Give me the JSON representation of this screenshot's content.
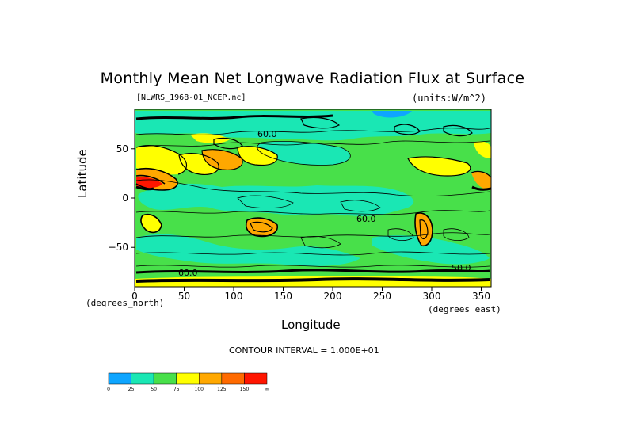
{
  "chart_data": {
    "type": "heatmap",
    "title": "Monthly Mean Net Longwave Radiation Flux at Surface",
    "file_label": "[NLWRS_1968-01_NCEP.nc]",
    "units_label": "(units:W/m^2)",
    "xlabel": "Longitude",
    "ylabel": "Latitude",
    "x_unit_label": "(degrees_east)",
    "y_unit_label": "(degrees_north)",
    "x_ticks": [
      0,
      50,
      100,
      150,
      200,
      250,
      300,
      350
    ],
    "y_ticks": [
      50,
      0,
      -50
    ],
    "xlim": [
      0,
      360
    ],
    "ylim": [
      -90,
      90
    ],
    "contour_interval": "CONTOUR INTERVAL = 1.000E+01",
    "contour_labels": [
      "60.0",
      "60.0",
      "60.0",
      "50.0"
    ],
    "colorbar": {
      "ticks": [
        "0",
        "25",
        "50",
        "75",
        "100",
        "125",
        "150",
        "∞"
      ],
      "colors": [
        "#0ea5ff",
        "#1ae7b4",
        "#48e04a",
        "#ffff00",
        "#ffa800",
        "#ff6a00",
        "#ff1500"
      ]
    }
  }
}
